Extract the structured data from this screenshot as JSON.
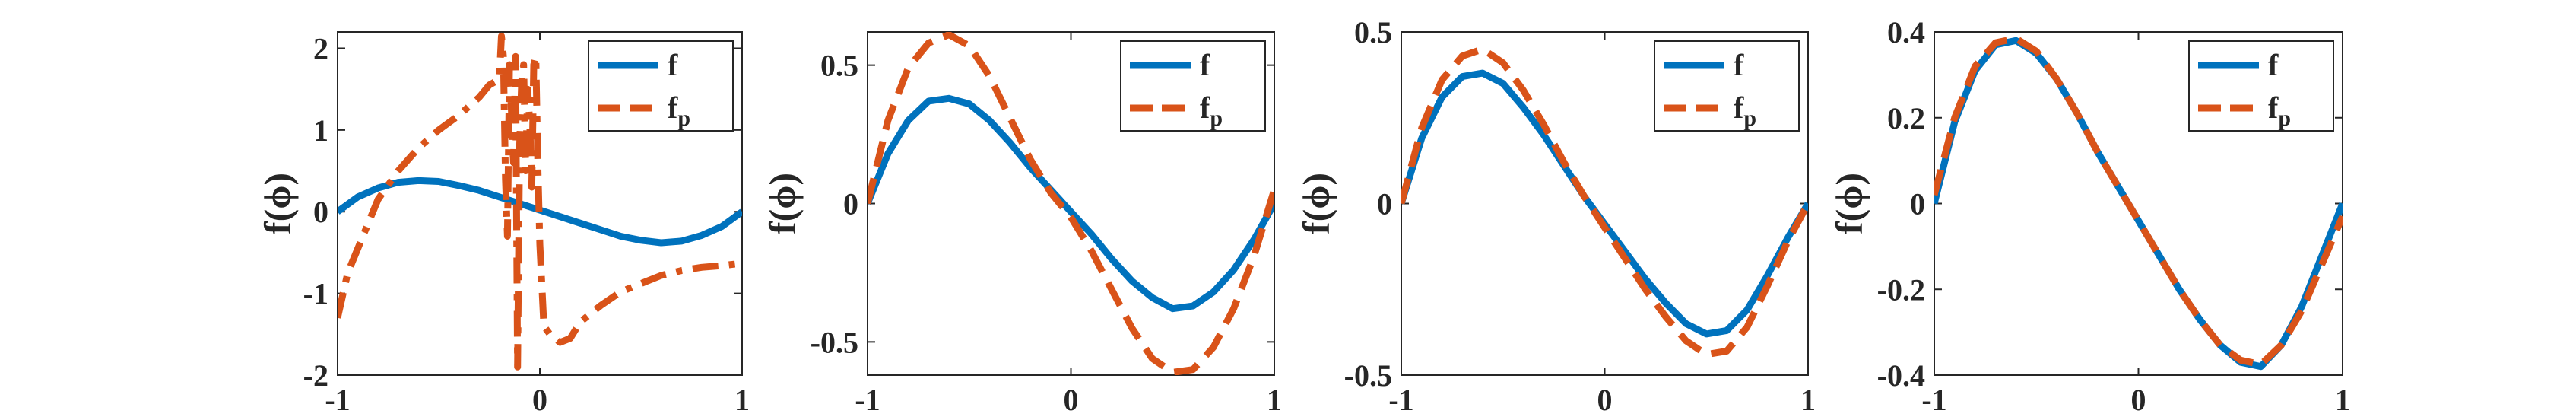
{
  "colors": {
    "f": "#0072bd",
    "fp": "#d95319",
    "axis": "#262626",
    "legend_border": "#262626"
  },
  "chart_data": [
    {
      "type": "line",
      "title": "",
      "xlabel": "",
      "ylabel": "f(ϕ)",
      "xlim": [
        -1,
        1
      ],
      "ylim": [
        -2,
        2.2
      ],
      "xticks": [
        -1,
        0,
        1
      ],
      "xtick_labels": [
        "-1",
        "0",
        "1"
      ],
      "yticks": [
        -2,
        -1,
        0,
        1,
        2
      ],
      "ytick_labels": [
        "-2",
        "-1",
        "0",
        "1",
        "2"
      ],
      "grid": false,
      "legend": {
        "placement": "top-right",
        "entries": [
          "f",
          "f_p"
        ]
      },
      "series": [
        {
          "name": "f",
          "style": "solid",
          "x": [
            -1,
            -0.9,
            -0.8,
            -0.7,
            -0.6,
            -0.5,
            -0.4,
            -0.3,
            -0.2,
            -0.1,
            0,
            0.1,
            0.2,
            0.3,
            0.4,
            0.5,
            0.6,
            0.7,
            0.8,
            0.9,
            1
          ],
          "y": [
            0,
            0.18,
            0.29,
            0.36,
            0.38,
            0.37,
            0.32,
            0.26,
            0.18,
            0.1,
            0.02,
            -0.06,
            -0.14,
            -0.22,
            -0.3,
            -0.35,
            -0.38,
            -0.36,
            -0.29,
            -0.18,
            0
          ]
        },
        {
          "name": "f_p",
          "style": "dashdot",
          "x": [
            -1,
            -0.95,
            -0.9,
            -0.85,
            -0.8,
            -0.7,
            -0.6,
            -0.5,
            -0.4,
            -0.3,
            -0.25,
            -0.2,
            -0.19,
            -0.18,
            -0.17,
            -0.16,
            -0.15,
            -0.14,
            -0.13,
            -0.12,
            -0.11,
            -0.1,
            -0.09,
            -0.08,
            -0.07,
            -0.06,
            -0.05,
            -0.04,
            -0.03,
            -0.02,
            -0.01,
            0,
            0.02,
            0.05,
            0.1,
            0.15,
            0.2,
            0.3,
            0.4,
            0.5,
            0.6,
            0.7,
            0.8,
            0.9,
            1
          ],
          "y": [
            -1.3,
            -0.75,
            -0.45,
            -0.15,
            0.15,
            0.5,
            0.78,
            1.0,
            1.18,
            1.4,
            1.55,
            1.62,
            2.15,
            1.9,
            0.4,
            -0.3,
            1.8,
            1.2,
            0.6,
            1.9,
            -1.9,
            0.8,
            1.6,
            1.8,
            0.5,
            1.5,
            1.1,
            0.3,
            1.8,
            1.9,
            0.6,
            -0.4,
            -1.4,
            -1.5,
            -1.6,
            -1.55,
            -1.35,
            -1.15,
            -0.98,
            -0.88,
            -0.78,
            -0.72,
            -0.68,
            -0.66,
            -0.63
          ]
        }
      ]
    },
    {
      "type": "line",
      "title": "",
      "xlabel": "",
      "ylabel": "f(ϕ)",
      "xlim": [
        -1,
        1
      ],
      "ylim": [
        -0.62,
        0.62
      ],
      "xticks": [
        -1,
        0,
        1
      ],
      "xtick_labels": [
        "-1",
        "0",
        "1"
      ],
      "yticks": [
        -0.5,
        0,
        0.5
      ],
      "ytick_labels": [
        "-0.5",
        "0",
        "0.5"
      ],
      "grid": false,
      "legend": {
        "placement": "top-right",
        "entries": [
          "f",
          "f_p"
        ]
      },
      "series": [
        {
          "name": "f",
          "style": "solid",
          "x": [
            -1,
            -0.9,
            -0.8,
            -0.7,
            -0.6,
            -0.5,
            -0.4,
            -0.3,
            -0.2,
            -0.1,
            0,
            0.1,
            0.2,
            0.3,
            0.4,
            0.5,
            0.6,
            0.7,
            0.8,
            0.9,
            1
          ],
          "y": [
            0,
            0.18,
            0.3,
            0.37,
            0.38,
            0.36,
            0.3,
            0.22,
            0.13,
            0.05,
            -0.03,
            -0.11,
            -0.2,
            -0.28,
            -0.34,
            -0.38,
            -0.37,
            -0.32,
            -0.24,
            -0.13,
            0
          ]
        },
        {
          "name": "f_p",
          "style": "dashed",
          "x": [
            -1,
            -0.9,
            -0.8,
            -0.7,
            -0.6,
            -0.5,
            -0.4,
            -0.3,
            -0.2,
            -0.1,
            0,
            0.1,
            0.2,
            0.3,
            0.4,
            0.5,
            0.6,
            0.7,
            0.8,
            0.9,
            1
          ],
          "y": [
            0,
            0.3,
            0.49,
            0.58,
            0.61,
            0.57,
            0.46,
            0.31,
            0.16,
            0.04,
            -0.05,
            -0.17,
            -0.31,
            -0.45,
            -0.56,
            -0.61,
            -0.6,
            -0.52,
            -0.38,
            -0.19,
            0.05
          ]
        }
      ]
    },
    {
      "type": "line",
      "title": "",
      "xlabel": "",
      "ylabel": "f(ϕ)",
      "xlim": [
        -1,
        1
      ],
      "ylim": [
        -0.5,
        0.5
      ],
      "xticks": [
        -1,
        0,
        1
      ],
      "xtick_labels": [
        "-1",
        "0",
        "1"
      ],
      "yticks": [
        -0.5,
        0,
        0.5
      ],
      "ytick_labels": [
        "-0.5",
        "0",
        "0.5"
      ],
      "grid": false,
      "legend": {
        "placement": "top-right",
        "entries": [
          "f",
          "f_p"
        ]
      },
      "series": [
        {
          "name": "f",
          "style": "solid",
          "x": [
            -1,
            -0.9,
            -0.8,
            -0.7,
            -0.6,
            -0.5,
            -0.4,
            -0.3,
            -0.2,
            -0.1,
            0,
            0.1,
            0.2,
            0.3,
            0.4,
            0.5,
            0.6,
            0.7,
            0.8,
            0.9,
            1
          ],
          "y": [
            0,
            0.19,
            0.31,
            0.37,
            0.38,
            0.35,
            0.28,
            0.2,
            0.11,
            0.02,
            -0.06,
            -0.14,
            -0.22,
            -0.29,
            -0.35,
            -0.38,
            -0.37,
            -0.31,
            -0.21,
            -0.1,
            0
          ]
        },
        {
          "name": "f_p",
          "style": "dashed",
          "x": [
            -1,
            -0.9,
            -0.8,
            -0.7,
            -0.6,
            -0.5,
            -0.4,
            -0.3,
            -0.2,
            -0.1,
            0,
            0.1,
            0.2,
            0.3,
            0.4,
            0.5,
            0.6,
            0.7,
            0.8,
            0.9,
            1
          ],
          "y": [
            0,
            0.22,
            0.36,
            0.43,
            0.45,
            0.41,
            0.33,
            0.23,
            0.12,
            0.02,
            -0.07,
            -0.16,
            -0.25,
            -0.33,
            -0.4,
            -0.44,
            -0.43,
            -0.36,
            -0.24,
            -0.11,
            0
          ]
        }
      ]
    },
    {
      "type": "line",
      "title": "",
      "xlabel": "",
      "ylabel": "f(ϕ)",
      "xlim": [
        -1,
        1
      ],
      "ylim": [
        -0.4,
        0.4
      ],
      "xticks": [
        -1,
        0,
        1
      ],
      "xtick_labels": [
        "-1",
        "0",
        "1"
      ],
      "yticks": [
        -0.4,
        -0.2,
        0,
        0.2,
        0.4
      ],
      "ytick_labels": [
        "-0.4",
        "-0.2",
        "0",
        "0.2",
        "0.4"
      ],
      "grid": false,
      "legend": {
        "placement": "top-right",
        "entries": [
          "f",
          "f_p"
        ]
      },
      "series": [
        {
          "name": "f",
          "style": "solid",
          "x": [
            -1,
            -0.9,
            -0.8,
            -0.7,
            -0.6,
            -0.5,
            -0.4,
            -0.3,
            -0.2,
            -0.1,
            0,
            0.1,
            0.2,
            0.3,
            0.4,
            0.5,
            0.6,
            0.7,
            0.8,
            0.9,
            1
          ],
          "y": [
            0,
            0.19,
            0.31,
            0.37,
            0.38,
            0.35,
            0.29,
            0.21,
            0.12,
            0.04,
            -0.04,
            -0.12,
            -0.2,
            -0.27,
            -0.33,
            -0.37,
            -0.38,
            -0.33,
            -0.24,
            -0.12,
            0
          ]
        },
        {
          "name": "f_p",
          "style": "dashed",
          "x": [
            -1,
            -0.9,
            -0.8,
            -0.7,
            -0.6,
            -0.5,
            -0.4,
            -0.3,
            -0.2,
            -0.1,
            0,
            0.1,
            0.2,
            0.3,
            0.4,
            0.5,
            0.6,
            0.7,
            0.8,
            0.9,
            1
          ],
          "y": [
            0.02,
            0.2,
            0.32,
            0.375,
            0.385,
            0.355,
            0.29,
            0.21,
            0.12,
            0.04,
            -0.04,
            -0.12,
            -0.2,
            -0.27,
            -0.33,
            -0.365,
            -0.375,
            -0.33,
            -0.25,
            -0.14,
            -0.03
          ]
        }
      ]
    }
  ]
}
